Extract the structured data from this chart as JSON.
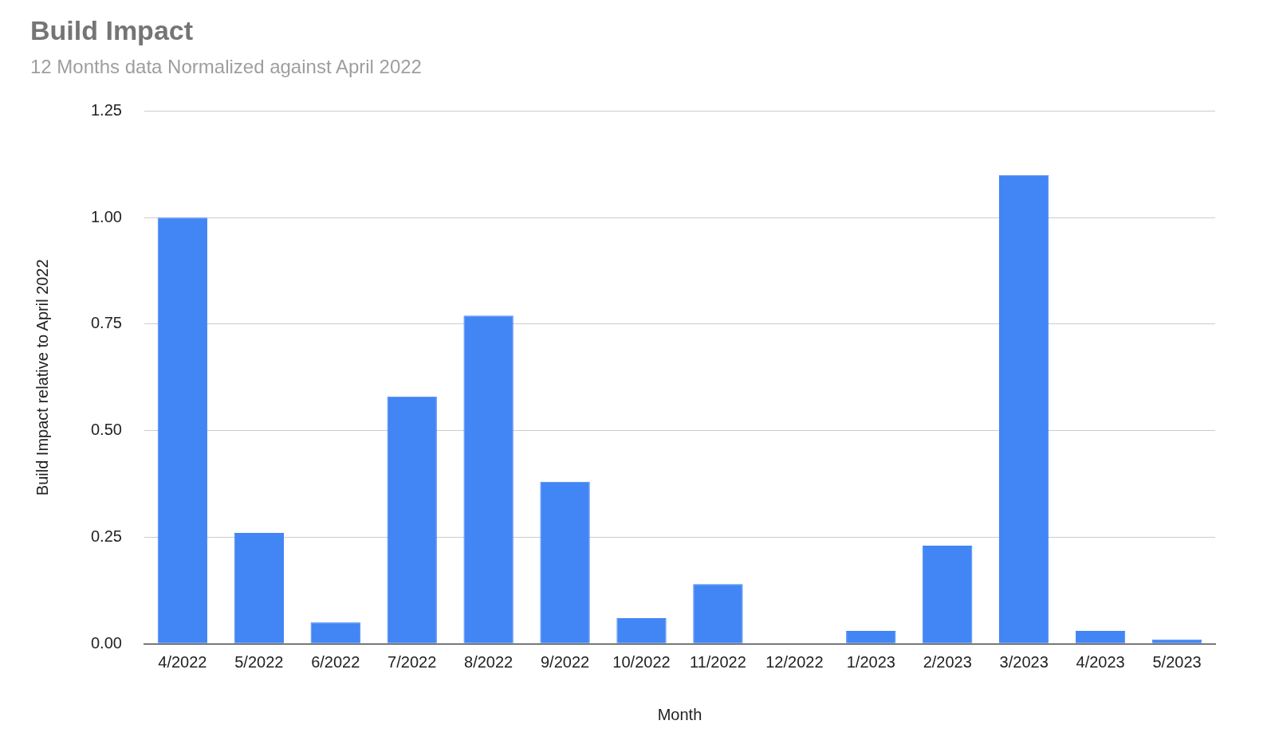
{
  "chart_data": {
    "type": "bar",
    "title": "Build Impact",
    "subtitle": "12 Months data Normalized against April 2022",
    "xlabel": "Month",
    "ylabel": "Build Impact relative to April 2022",
    "categories": [
      "4/2022",
      "5/2022",
      "6/2022",
      "7/2022",
      "8/2022",
      "9/2022",
      "10/2022",
      "11/2022",
      "12/2022",
      "1/2023",
      "2/2023",
      "3/2023",
      "4/2023",
      "5/2023"
    ],
    "values": [
      1.0,
      0.26,
      0.05,
      0.58,
      0.77,
      0.38,
      0.06,
      0.14,
      0,
      0.03,
      0.23,
      1.1,
      0.03,
      0.01
    ],
    "color": "#4285f4",
    "ylim": [
      0,
      1.25
    ],
    "yticks": [
      {
        "value": 0,
        "label": "0.00"
      },
      {
        "value": 0.25,
        "label": "0.25"
      },
      {
        "value": 0.5,
        "label": "0.50"
      },
      {
        "value": 0.75,
        "label": "0.75"
      },
      {
        "value": 1,
        "label": "1.00"
      },
      {
        "value": 1.25,
        "label": "1.25"
      }
    ],
    "grid": "y",
    "legend": false
  }
}
